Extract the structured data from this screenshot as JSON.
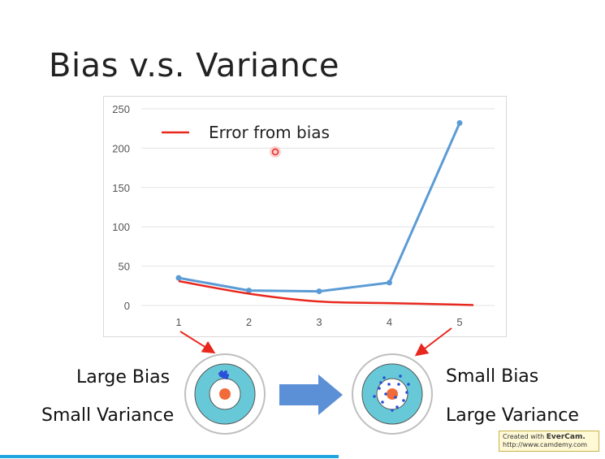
{
  "slide": {
    "title": "Bias v.s. Variance"
  },
  "chart_data": {
    "type": "line",
    "categories": [
      "1",
      "2",
      "3",
      "4",
      "5"
    ],
    "y_ticks": [
      "0",
      "50",
      "100",
      "150",
      "200",
      "250"
    ],
    "ylim": [
      0,
      250
    ],
    "grid": true,
    "legend_placement": "top-left",
    "series": [
      {
        "name": "Error from bias",
        "color": "#e8281e",
        "values": [
          31,
          15,
          5,
          3,
          1
        ],
        "smooth": true
      },
      {
        "name": "",
        "color": "#5b9bd5",
        "values": [
          35,
          19,
          18,
          29,
          232
        ],
        "markers": true
      }
    ]
  },
  "labels": {
    "left_top": "Large Bias",
    "left_bottom": "Small Variance",
    "right_top": "Small Bias",
    "right_bottom": "Large Variance"
  },
  "badge": {
    "line1_prefix": "Created with ",
    "line1_brand": "EverCam.",
    "line2": "http://www.camdemy.com"
  },
  "colors": {
    "target_outer": "#ffffff",
    "target_ring": "#67c9d7",
    "target_center": "#f26b3a",
    "arrow": "#5b8fd6",
    "callout": "#e8281e"
  }
}
